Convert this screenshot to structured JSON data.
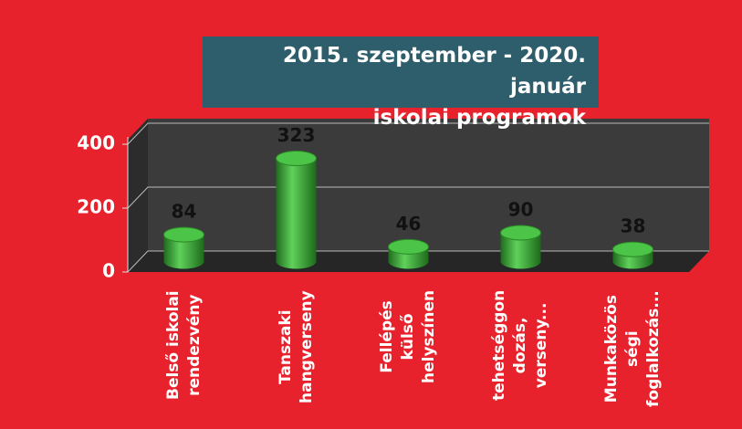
{
  "chart_data": {
    "type": "bar3d",
    "title": "2015. szeptember - 2020. január\niskolai programok",
    "categories": [
      "Belső iskolai\nrendezvény",
      "Tanszaki\nhangverseny",
      "Fellépés\nkülső\nhelyszínen",
      "tehetséggon\ndozás,\nverseny...",
      "Munkaközös\nségi\nfoglalkozás..."
    ],
    "values": [
      84,
      323,
      46,
      90,
      38
    ],
    "color": "#3fae3a",
    "ylim": [
      0,
      400
    ],
    "yticks": [
      0,
      200,
      400
    ],
    "grid": true
  }
}
